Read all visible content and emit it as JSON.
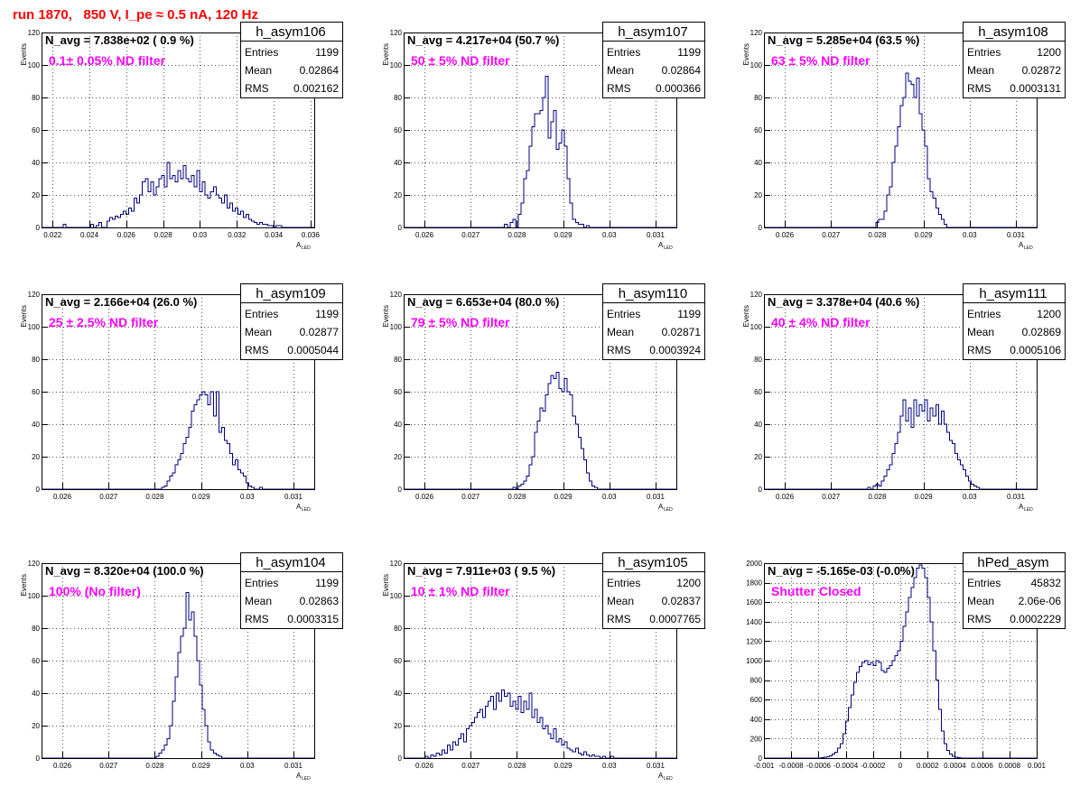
{
  "run_title": "run 1870,   850 V, I_pe ≈ 0.5 nA, 120 Hz",
  "stats_labels": {
    "entries": "Entries",
    "mean": "Mean",
    "rms": "RMS"
  },
  "chart_data": [
    {
      "type": "bar",
      "name": "h_asym106",
      "navg_label": "N_avg = 7.838e+02 ( 0.9 %)",
      "filter_label": "0.1± 0.05% ND filter",
      "entries": "1199",
      "mean": "0.02864",
      "rms": "0.002162",
      "xlabel": "A",
      "xlabel_sub": "LED",
      "ylabel": "Events",
      "xlim": [
        0.0214,
        0.0362
      ],
      "ylim": [
        0,
        120
      ],
      "xticks": [
        0.022,
        0.024,
        0.026,
        0.028,
        0.03,
        0.032,
        0.034,
        0.036
      ],
      "xtick_labels": [
        "0.022",
        "0.024",
        "0.026",
        "0.028",
        "0.03",
        "0.032",
        "0.034",
        "0.036"
      ],
      "yticks": [
        0,
        20,
        40,
        60,
        80,
        100,
        120
      ],
      "bin_lo": 0.0214,
      "bin_width": 0.000148,
      "values": [
        0,
        0,
        0,
        0,
        0,
        0,
        0,
        0,
        2,
        0,
        0,
        0,
        0,
        0,
        0,
        0,
        0,
        0,
        2,
        0,
        1,
        3,
        0,
        0,
        4,
        6,
        5,
        7,
        6,
        8,
        10,
        8,
        12,
        10,
        18,
        15,
        20,
        28,
        30,
        22,
        28,
        20,
        25,
        30,
        32,
        25,
        40,
        30,
        32,
        28,
        35,
        30,
        38,
        30,
        28,
        32,
        25,
        35,
        22,
        28,
        20,
        18,
        22,
        25,
        20,
        18,
        15,
        20,
        12,
        15,
        10,
        12,
        8,
        10,
        6,
        8,
        5,
        4,
        3,
        2,
        3,
        2,
        2,
        1,
        1,
        0,
        1,
        1,
        0,
        0,
        0,
        0,
        0,
        0,
        0,
        0,
        0,
        0,
        0,
        0
      ]
    },
    {
      "type": "bar",
      "name": "h_asym107",
      "navg_label": "N_avg = 4.217e+04 (50.7 %)",
      "filter_label": "50 ± 5% ND filter",
      "entries": "1199",
      "mean": "0.02864",
      "rms": "0.000366",
      "xlabel": "A",
      "xlabel_sub": "LED",
      "ylabel": "Events",
      "xlim": [
        0.02555,
        0.03145
      ],
      "ylim": [
        0,
        120
      ],
      "xticks": [
        0.026,
        0.027,
        0.028,
        0.029,
        0.03,
        0.031
      ],
      "xtick_labels": [
        "0.026",
        "0.027",
        "0.028",
        "0.029",
        "0.03",
        "0.031"
      ],
      "yticks": [
        0,
        20,
        40,
        60,
        80,
        100,
        120
      ],
      "bin_lo": 0.02555,
      "bin_width": 5.9e-05,
      "values": [
        0,
        0,
        0,
        0,
        0,
        0,
        0,
        0,
        0,
        0,
        0,
        0,
        0,
        0,
        0,
        0,
        0,
        0,
        0,
        0,
        0,
        0,
        0,
        0,
        0,
        0,
        0,
        0,
        0,
        0,
        0,
        0,
        0,
        0,
        0,
        0,
        0,
        2,
        0,
        3,
        5,
        0,
        8,
        15,
        30,
        35,
        50,
        62,
        70,
        70,
        72,
        80,
        93,
        55,
        65,
        72,
        48,
        52,
        60,
        50,
        30,
        15,
        5,
        3,
        2,
        2,
        0,
        1,
        0,
        0,
        0,
        0,
        0,
        0,
        0,
        0,
        0,
        0,
        0,
        0,
        0,
        0,
        0,
        0,
        0,
        0,
        0,
        0,
        0,
        0,
        0,
        0,
        0,
        0,
        0,
        0,
        0,
        0,
        0,
        0
      ]
    },
    {
      "type": "bar",
      "name": "h_asym108",
      "navg_label": "N_avg = 5.285e+04 (63.5 %)",
      "filter_label": "63 ± 5% ND filter",
      "entries": "1200",
      "mean": "0.02872",
      "rms": "0.0003131",
      "xlabel": "A",
      "xlabel_sub": "LED",
      "ylabel": "Events",
      "xlim": [
        0.02555,
        0.03145
      ],
      "ylim": [
        0,
        120
      ],
      "xticks": [
        0.026,
        0.027,
        0.028,
        0.029,
        0.03,
        0.031
      ],
      "xtick_labels": [
        "0.026",
        "0.027",
        "0.028",
        "0.029",
        "0.03",
        "0.031"
      ],
      "yticks": [
        0,
        20,
        40,
        60,
        80,
        100,
        120
      ],
      "bin_lo": 0.02555,
      "bin_width": 5.9e-05,
      "values": [
        0,
        0,
        0,
        0,
        0,
        0,
        0,
        0,
        0,
        0,
        0,
        0,
        0,
        0,
        0,
        0,
        0,
        0,
        0,
        0,
        0,
        0,
        0,
        0,
        0,
        0,
        0,
        0,
        0,
        0,
        0,
        0,
        0,
        0,
        0,
        0,
        0,
        0,
        0,
        0,
        0,
        3,
        5,
        5,
        10,
        20,
        25,
        40,
        50,
        62,
        75,
        80,
        95,
        90,
        88,
        80,
        92,
        70,
        60,
        50,
        30,
        22,
        18,
        12,
        8,
        5,
        2,
        0,
        0,
        0,
        0,
        0,
        0,
        0,
        0,
        0,
        0,
        0,
        0,
        0,
        0,
        0,
        0,
        0,
        0,
        0,
        0,
        0,
        0,
        0,
        0,
        0,
        0,
        0,
        0,
        0,
        0,
        0,
        0,
        0
      ]
    },
    {
      "type": "bar",
      "name": "h_asym109",
      "navg_label": "N_avg = 2.166e+04 (26.0 %)",
      "filter_label": "25 ± 2.5% ND filter",
      "entries": "1199",
      "mean": "0.02877",
      "rms": "0.0005044",
      "xlabel": "A",
      "xlabel_sub": "LED",
      "ylabel": "Events",
      "xlim": [
        0.02555,
        0.03145
      ],
      "ylim": [
        0,
        120
      ],
      "xticks": [
        0.026,
        0.027,
        0.028,
        0.029,
        0.03,
        0.031
      ],
      "xtick_labels": [
        "0.026",
        "0.027",
        "0.028",
        "0.029",
        "0.03",
        "0.031"
      ],
      "yticks": [
        0,
        20,
        40,
        60,
        80,
        100,
        120
      ],
      "bin_lo": 0.02555,
      "bin_width": 5.9e-05,
      "values": [
        0,
        0,
        0,
        0,
        0,
        0,
        0,
        0,
        0,
        0,
        0,
        0,
        0,
        0,
        0,
        0,
        0,
        0,
        0,
        0,
        0,
        0,
        0,
        0,
        0,
        0,
        0,
        0,
        0,
        0,
        0,
        0,
        0,
        0,
        0,
        0,
        0,
        0,
        0,
        0,
        0,
        0,
        0,
        0,
        1,
        2,
        5,
        8,
        10,
        15,
        18,
        22,
        28,
        32,
        38,
        48,
        52,
        55,
        58,
        60,
        58,
        52,
        60,
        45,
        60,
        35,
        38,
        30,
        28,
        22,
        15,
        18,
        12,
        10,
        8,
        4,
        2,
        1,
        0,
        0,
        1,
        0,
        0,
        0,
        0,
        0,
        0,
        0,
        0,
        0,
        0,
        0,
        0,
        0,
        0,
        0,
        0,
        0,
        0,
        0
      ]
    },
    {
      "type": "bar",
      "name": "h_asym110",
      "navg_label": "N_avg = 6.653e+04 (80.0 %)",
      "filter_label": "79 ± 5% ND filter",
      "entries": "1199",
      "mean": "0.02871",
      "rms": "0.0003924",
      "xlabel": "A",
      "xlabel_sub": "LED",
      "ylabel": "Events",
      "xlim": [
        0.02555,
        0.03145
      ],
      "ylim": [
        0,
        120
      ],
      "xticks": [
        0.026,
        0.027,
        0.028,
        0.029,
        0.03,
        0.031
      ],
      "xtick_labels": [
        "0.026",
        "0.027",
        "0.028",
        "0.029",
        "0.03",
        "0.031"
      ],
      "yticks": [
        0,
        20,
        40,
        60,
        80,
        100,
        120
      ],
      "bin_lo": 0.02555,
      "bin_width": 5.9e-05,
      "values": [
        0,
        0,
        0,
        0,
        0,
        0,
        0,
        0,
        0,
        0,
        0,
        0,
        0,
        0,
        0,
        0,
        0,
        0,
        0,
        0,
        0,
        0,
        0,
        0,
        0,
        0,
        0,
        0,
        0,
        0,
        0,
        0,
        0,
        0,
        0,
        0,
        0,
        0,
        0,
        0,
        1,
        0,
        2,
        3,
        5,
        8,
        15,
        20,
        35,
        42,
        50,
        48,
        58,
        65,
        70,
        68,
        72,
        62,
        60,
        68,
        60,
        58,
        45,
        40,
        32,
        25,
        18,
        10,
        5,
        2,
        1,
        0,
        0,
        0,
        0,
        0,
        0,
        0,
        0,
        0,
        0,
        0,
        0,
        0,
        0,
        0,
        0,
        0,
        0,
        0,
        0,
        0,
        0,
        0,
        0,
        0,
        0,
        0,
        0,
        0
      ]
    },
    {
      "type": "bar",
      "name": "h_asym111",
      "navg_label": "N_avg = 3.378e+04 (40.6 %)",
      "filter_label": "40 ± 4% ND filter",
      "entries": "1200",
      "mean": "0.02869",
      "rms": "0.0005106",
      "xlabel": "A",
      "xlabel_sub": "LED",
      "ylabel": "Events",
      "xlim": [
        0.02555,
        0.03145
      ],
      "ylim": [
        0,
        120
      ],
      "xticks": [
        0.026,
        0.027,
        0.028,
        0.029,
        0.03,
        0.031
      ],
      "xtick_labels": [
        "0.026",
        "0.027",
        "0.028",
        "0.029",
        "0.03",
        "0.031"
      ],
      "yticks": [
        0,
        20,
        40,
        60,
        80,
        100,
        120
      ],
      "bin_lo": 0.02555,
      "bin_width": 5.9e-05,
      "values": [
        0,
        0,
        0,
        0,
        0,
        0,
        0,
        0,
        0,
        0,
        0,
        0,
        0,
        0,
        0,
        0,
        0,
        0,
        0,
        0,
        0,
        0,
        0,
        0,
        0,
        0,
        0,
        0,
        0,
        0,
        0,
        0,
        0,
        0,
        0,
        0,
        0,
        0,
        1,
        0,
        2,
        3,
        2,
        5,
        8,
        12,
        15,
        22,
        28,
        35,
        45,
        55,
        42,
        50,
        38,
        55,
        45,
        52,
        48,
        55,
        42,
        50,
        45,
        52,
        40,
        48,
        40,
        35,
        30,
        28,
        22,
        18,
        15,
        12,
        8,
        5,
        3,
        2,
        1,
        0,
        0,
        0,
        0,
        0,
        0,
        0,
        0,
        0,
        0,
        0,
        0,
        0,
        0,
        0,
        0,
        0,
        0,
        0,
        0,
        0
      ]
    },
    {
      "type": "bar",
      "name": "h_asym104",
      "navg_label": "N_avg = 8.320e+04 (100.0 %)",
      "filter_label": "100% (No filter)",
      "entries": "1199",
      "mean": "0.02863",
      "rms": "0.0003315",
      "xlabel": "A",
      "xlabel_sub": "LED",
      "ylabel": "Events",
      "xlim": [
        0.02555,
        0.03145
      ],
      "ylim": [
        0,
        120
      ],
      "xticks": [
        0.026,
        0.027,
        0.028,
        0.029,
        0.03,
        0.031
      ],
      "xtick_labels": [
        "0.026",
        "0.027",
        "0.028",
        "0.029",
        "0.03",
        "0.031"
      ],
      "yticks": [
        0,
        20,
        40,
        60,
        80,
        100,
        120
      ],
      "bin_lo": 0.02555,
      "bin_width": 5.9e-05,
      "values": [
        0,
        0,
        0,
        0,
        0,
        0,
        0,
        0,
        0,
        0,
        0,
        0,
        0,
        0,
        0,
        0,
        0,
        0,
        0,
        0,
        0,
        0,
        0,
        0,
        0,
        0,
        0,
        0,
        0,
        0,
        0,
        0,
        0,
        0,
        0,
        0,
        0,
        0,
        0,
        0,
        0,
        0,
        1,
        3,
        5,
        8,
        12,
        20,
        35,
        50,
        65,
        75,
        80,
        102,
        85,
        90,
        75,
        60,
        45,
        30,
        20,
        10,
        5,
        3,
        2,
        1,
        0,
        0,
        0,
        0,
        0,
        0,
        0,
        0,
        0,
        0,
        0,
        0,
        0,
        0,
        0,
        0,
        0,
        0,
        0,
        0,
        0,
        0,
        0,
        0,
        0,
        0,
        0,
        0,
        0,
        0,
        0,
        0,
        0,
        0
      ]
    },
    {
      "type": "bar",
      "name": "h_asym105",
      "navg_label": "N_avg = 7.911e+03 ( 9.5 %)",
      "filter_label": "10 ± 1% ND filter",
      "entries": "1200",
      "mean": "0.02837",
      "rms": "0.0007765",
      "xlabel": "A",
      "xlabel_sub": "LED",
      "ylabel": "Events",
      "xlim": [
        0.02555,
        0.03145
      ],
      "ylim": [
        0,
        120
      ],
      "xticks": [
        0.026,
        0.027,
        0.028,
        0.029,
        0.03,
        0.031
      ],
      "xtick_labels": [
        "0.026",
        "0.027",
        "0.028",
        "0.029",
        "0.03",
        "0.031"
      ],
      "yticks": [
        0,
        20,
        40,
        60,
        80,
        100,
        120
      ],
      "bin_lo": 0.02555,
      "bin_width": 5.9e-05,
      "values": [
        0,
        0,
        0,
        0,
        0,
        0,
        0,
        0,
        1,
        0,
        2,
        1,
        3,
        2,
        5,
        3,
        8,
        5,
        10,
        8,
        12,
        15,
        10,
        18,
        20,
        22,
        25,
        28,
        30,
        25,
        32,
        35,
        38,
        30,
        40,
        35,
        42,
        38,
        40,
        32,
        35,
        30,
        38,
        28,
        35,
        30,
        40,
        25,
        30,
        22,
        25,
        18,
        20,
        15,
        12,
        18,
        10,
        12,
        8,
        10,
        6,
        5,
        4,
        6,
        3,
        2,
        4,
        2,
        1,
        2,
        1,
        1,
        0,
        1,
        0,
        0,
        1,
        0,
        0,
        0,
        0,
        0,
        0,
        0,
        0,
        0,
        0,
        0,
        0,
        0,
        0,
        0,
        0,
        0,
        0,
        0,
        0,
        0,
        0,
        0
      ]
    },
    {
      "type": "bar",
      "name": "hPed_asym",
      "navg_label": "N_avg = -5.165e-03 (-0.0%)",
      "filter_label": "Shutter Closed",
      "entries": "45832",
      "mean": "2.06e-06",
      "rms": "0.0002229",
      "xlabel": "",
      "xlabel_sub": "",
      "ylabel": "",
      "xlim": [
        -0.001,
        0.001
      ],
      "ylim": [
        0,
        2000
      ],
      "xticks": [
        -0.001,
        -0.0008,
        -0.0006,
        -0.0004,
        -0.0002,
        0,
        0.0002,
        0.0004,
        0.0006,
        0.0008,
        0.001
      ],
      "xtick_labels": [
        "-0.001",
        "-0.0008",
        "-0.0006",
        "-0.0004",
        "-0.0002",
        "0",
        "0.0002",
        "0.0004",
        "0.0006",
        "0.0008",
        "0.001"
      ],
      "yticks": [
        0,
        200,
        400,
        600,
        800,
        1000,
        1200,
        1400,
        1600,
        1800,
        2000
      ],
      "bin_lo": -0.001,
      "bin_width": 2e-05,
      "values": [
        0,
        0,
        0,
        0,
        0,
        0,
        0,
        0,
        0,
        0,
        0,
        0,
        0,
        0,
        0,
        0,
        0,
        0,
        0,
        0,
        0,
        5,
        10,
        15,
        25,
        40,
        60,
        100,
        150,
        250,
        380,
        520,
        650,
        780,
        880,
        940,
        980,
        1000,
        960,
        980,
        950,
        1000,
        980,
        900,
        880,
        920,
        950,
        1000,
        1050,
        1100,
        1200,
        1350,
        1500,
        1650,
        1750,
        1850,
        1950,
        1980,
        1950,
        1850,
        1650,
        1400,
        1100,
        800,
        500,
        280,
        150,
        80,
        40,
        20,
        10,
        5,
        2,
        0,
        0,
        0,
        0,
        0,
        0,
        0,
        0,
        0,
        0,
        0,
        0,
        0,
        0,
        0,
        0,
        0,
        0,
        0,
        0,
        0,
        0,
        0,
        0,
        0,
        0,
        0
      ]
    }
  ]
}
